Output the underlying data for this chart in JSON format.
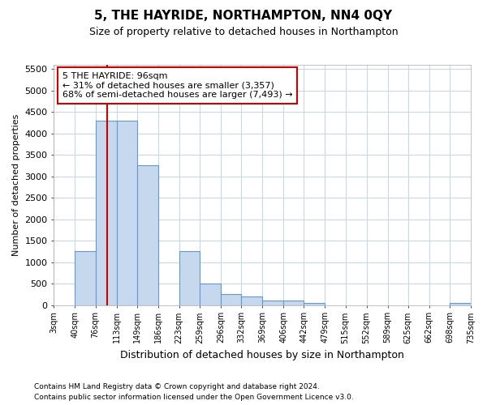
{
  "title": "5, THE HAYRIDE, NORTHAMPTON, NN4 0QY",
  "subtitle": "Size of property relative to detached houses in Northampton",
  "xlabel": "Distribution of detached houses by size in Northampton",
  "ylabel": "Number of detached properties",
  "footnote1": "Contains HM Land Registry data © Crown copyright and database right 2024.",
  "footnote2": "Contains public sector information licensed under the Open Government Licence v3.0.",
  "annotation_line1": "5 THE HAYRIDE: 96sqm",
  "annotation_line2": "← 31% of detached houses are smaller (3,357)",
  "annotation_line3": "68% of semi-detached houses are larger (7,493) →",
  "bin_edges": [
    3,
    40,
    76,
    113,
    149,
    186,
    223,
    259,
    296,
    332,
    369,
    406,
    442,
    479,
    515,
    552,
    589,
    625,
    662,
    698,
    735
  ],
  "bar_heights": [
    0,
    1250,
    4300,
    4300,
    3250,
    0,
    1250,
    500,
    250,
    200,
    100,
    100,
    50,
    0,
    0,
    0,
    0,
    0,
    0,
    50
  ],
  "bar_color": "#c5d8ee",
  "bar_edgecolor": "#6699cc",
  "vline_color": "#cc0000",
  "vline_x": 96,
  "annotation_box_edgecolor": "#cc0000",
  "ylim": [
    0,
    5600
  ],
  "yticks": [
    0,
    500,
    1000,
    1500,
    2000,
    2500,
    3000,
    3500,
    4000,
    4500,
    5000,
    5500
  ],
  "bg_color": "#ffffff",
  "grid_color": "#c8d8e8",
  "title_fontsize": 11,
  "subtitle_fontsize": 9,
  "xlabel_fontsize": 9,
  "ylabel_fontsize": 8,
  "xtick_fontsize": 7,
  "ytick_fontsize": 8,
  "annotation_fontsize": 8,
  "footnote_fontsize": 6.5
}
